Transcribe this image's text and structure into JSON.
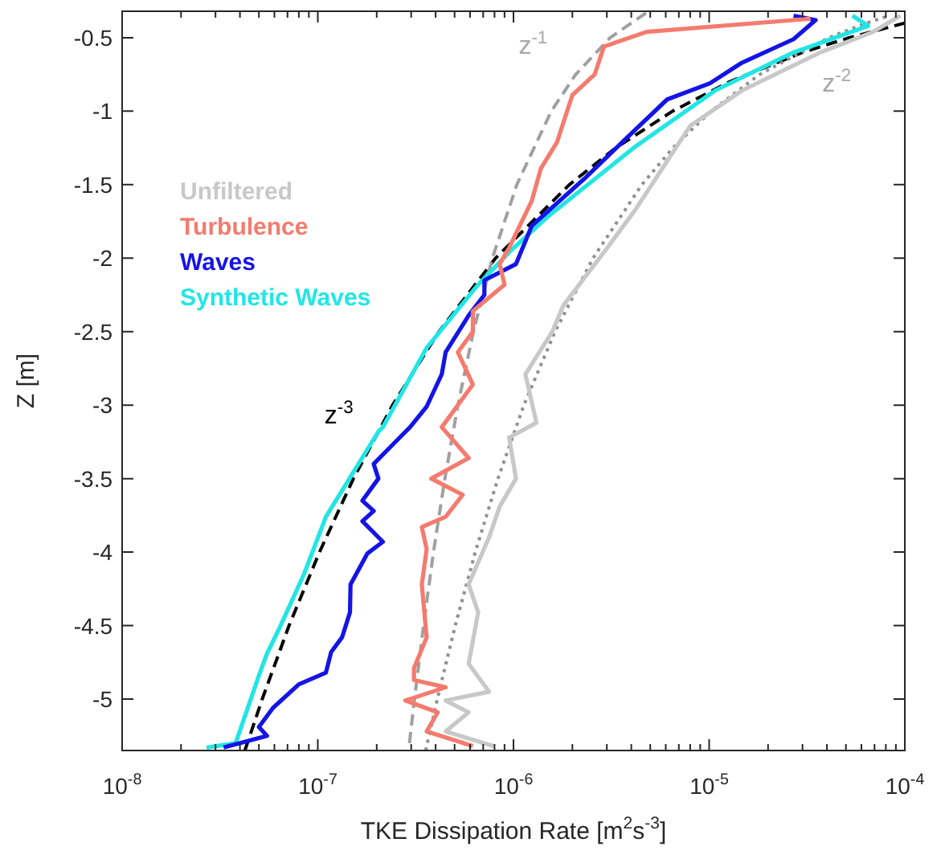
{
  "chart_data": {
    "type": "line",
    "log": "x",
    "xlabel": "TKE Dissipation Rate [m$^{2}$s$^{-3}$]",
    "ylabel": "Z [m]",
    "legend": "left",
    "xlim": [
      1e-08,
      0.0001
    ],
    "ylim": [
      -5.35,
      -0.32
    ],
    "xticks": [
      {
        "value": 1e-08,
        "label": "10$^{-8}$"
      },
      {
        "value": 2e-08,
        "label": null
      },
      {
        "value": 3e-08,
        "label": null
      },
      {
        "value": 4e-08,
        "label": null
      },
      {
        "value": 5e-08,
        "label": null
      },
      {
        "value": 6e-08,
        "label": null
      },
      {
        "value": 7e-08,
        "label": null
      },
      {
        "value": 8e-08,
        "label": null
      },
      {
        "value": 9e-08,
        "label": null
      },
      {
        "value": 1e-07,
        "label": "10$^{-7}$"
      },
      {
        "value": 2e-07,
        "label": null
      },
      {
        "value": 3e-07,
        "label": null
      },
      {
        "value": 4e-07,
        "label": null
      },
      {
        "value": 5e-07,
        "label": null
      },
      {
        "value": 6e-07,
        "label": null
      },
      {
        "value": 7e-07,
        "label": null
      },
      {
        "value": 8e-07,
        "label": null
      },
      {
        "value": 9e-07,
        "label": null
      },
      {
        "value": 1e-06,
        "label": "10$^{-6}$"
      },
      {
        "value": 2e-06,
        "label": null
      },
      {
        "value": 3e-06,
        "label": null
      },
      {
        "value": 4e-06,
        "label": null
      },
      {
        "value": 5e-06,
        "label": null
      },
      {
        "value": 6e-06,
        "label": null
      },
      {
        "value": 7e-06,
        "label": null
      },
      {
        "value": 8e-06,
        "label": null
      },
      {
        "value": 9e-06,
        "label": null
      },
      {
        "value": 1e-05,
        "label": "10$^{-5}$"
      },
      {
        "value": 2e-05,
        "label": null
      },
      {
        "value": 3e-05,
        "label": null
      },
      {
        "value": 4e-05,
        "label": null
      },
      {
        "value": 5e-05,
        "label": null
      },
      {
        "value": 6e-05,
        "label": null
      },
      {
        "value": 7e-05,
        "label": null
      },
      {
        "value": 8e-05,
        "label": null
      },
      {
        "value": 9e-05,
        "label": null
      },
      {
        "value": 0.0001,
        "label": "10$^{-4}$"
      }
    ],
    "yticks": [
      -5,
      -4.5,
      -4,
      -3.5,
      -3,
      -2.5,
      -2,
      -1.5,
      -1,
      -0.5
    ],
    "annotations": [
      "z$^{-1}$",
      "z$^{-2}$",
      "z$^{-3}$"
    ],
    "series": [
      {
        "name": "Unfiltered",
        "color": "#c8c8c8",
        "x": [
          7.9e-07,
          4.5e-07,
          5.9e-07,
          4.5e-07,
          7.5e-07,
          5.9e-07,
          6.6e-07,
          5.9e-07,
          7.5e-07,
          8.5e-07,
          1.03e-06,
          9.5e-07,
          1.31e-06,
          1.15e-06,
          1.58e-06,
          1.8e-06,
          2.9e-06,
          4.2e-06,
          8e-06,
          1.47e-05,
          3.7e-05,
          6.9e-05,
          9.5e-05
        ],
        "values": [
          -5.32,
          -5.22,
          -5.09,
          -5.01,
          -4.95,
          -4.76,
          -4.41,
          -4.22,
          -3.9,
          -3.69,
          -3.5,
          -3.22,
          -3.12,
          -2.79,
          -2.5,
          -2.32,
          -1.96,
          -1.67,
          -1.1,
          -0.86,
          -0.6,
          -0.46,
          -0.35
        ]
      },
      {
        "name": "Turbulence",
        "color": "#f47b6e",
        "x": [
          6.2e-07,
          3.6e-07,
          4.1e-07,
          2.8e-07,
          4.5e-07,
          3.1e-07,
          3.1e-07,
          3.6e-07,
          3.4e-07,
          3.6e-07,
          3.4e-07,
          4.5e-07,
          5.5e-07,
          3.8e-07,
          5.9e-07,
          4.3e-07,
          6.2e-07,
          5.2e-07,
          6.2e-07,
          6.2e-07,
          9e-07,
          8.5e-07,
          9.5e-07,
          1.24e-06,
          1.38e-06,
          1.67e-06,
          2e-06,
          2.6e-06,
          2.9e-06,
          4.8e-06,
          2.7e-05,
          3.3e-05
        ],
        "values": [
          -5.32,
          -5.22,
          -5.09,
          -5.01,
          -4.92,
          -4.87,
          -4.79,
          -4.58,
          -4.22,
          -3.98,
          -3.83,
          -3.76,
          -3.61,
          -3.5,
          -3.36,
          -3.15,
          -2.86,
          -2.64,
          -2.5,
          -2.36,
          -2.18,
          -2.04,
          -1.93,
          -1.61,
          -1.39,
          -1.21,
          -0.89,
          -0.75,
          -0.56,
          -0.46,
          -0.38,
          -0.37
        ]
      },
      {
        "name": "Waves",
        "color": "#1414e6",
        "x": [
          3.3e-08,
          5.5e-08,
          5e-08,
          5.9e-08,
          8e-08,
          1.1e-07,
          1.17e-07,
          1.33e-07,
          1.46e-07,
          1.47e-07,
          1.79e-07,
          2.15e-07,
          1.69e-07,
          1.93e-07,
          1.69e-07,
          2.04e-07,
          1.93e-07,
          2.45e-07,
          2.96e-07,
          3.6e-07,
          4.3e-07,
          4.5e-07,
          5.9e-07,
          7.1e-07,
          7.1e-07,
          1.03e-06,
          1.24e-06,
          2.3e-06,
          3.8e-06,
          6.1e-06,
          1.01e-05,
          1.47e-05,
          2.7e-05,
          3.5e-05,
          2.7e-05
        ],
        "values": [
          -5.33,
          -5.25,
          -5.19,
          -5.06,
          -4.9,
          -4.82,
          -4.68,
          -4.58,
          -4.41,
          -4.22,
          -4.01,
          -3.93,
          -3.79,
          -3.72,
          -3.65,
          -3.5,
          -3.4,
          -3.26,
          -3.15,
          -3.01,
          -2.79,
          -2.64,
          -2.39,
          -2.25,
          -2.15,
          -2.04,
          -1.78,
          -1.46,
          -1.18,
          -0.92,
          -0.81,
          -0.67,
          -0.51,
          -0.38,
          -0.35
        ]
      },
      {
        "name": "Synthetic Waves",
        "color": "#22e5e5",
        "x": [
          2.7e-08,
          3.8e-08,
          4.6e-08,
          5e-08,
          5.5e-08,
          6.3e-08,
          8.5e-08,
          1.1e-07,
          2.04e-07,
          2.15e-07,
          3.6e-07,
          6.6e-07,
          9.5e-07,
          1.49e-06,
          4.2e-06,
          1.07e-05,
          2.7e-05,
          6.5e-05,
          5.4e-05
        ],
        "values": [
          -5.33,
          -5.3,
          -4.98,
          -4.84,
          -4.69,
          -4.53,
          -4.15,
          -3.76,
          -3.18,
          -3.15,
          -2.61,
          -2.18,
          -1.96,
          -1.72,
          -1.24,
          -0.86,
          -0.6,
          -0.42,
          -0.35
        ]
      },
      {
        "color": "#a0a0a0",
        "line_style": "dashed",
        "x": [
          2.94e-07,
          3.12e-07,
          3.47e-07,
          3.9e-07,
          4.46e-07,
          5.2e-07,
          6.24e-07,
          7.8e-07,
          1.04e-06,
          1.56e-06,
          2.08e-06,
          3.12e-06,
          4.9e-06
        ],
        "values": [
          -5.3,
          -5,
          -4.5,
          -4,
          -3.5,
          -3,
          -2.5,
          -2,
          -1.5,
          -1,
          -0.75,
          -0.5,
          -0.32
        ]
      },
      {
        "color": "#909090",
        "line_style": "dotted",
        "x": [
          3.56e-07,
          4.08e-07,
          5.04e-07,
          6.38e-07,
          8.33e-07,
          1.13e-06,
          1.63e-06,
          2.55e-06,
          4.53e-06,
          6.53e-06,
          1.02e-05,
          1.81e-05,
          4.08e-05,
          6.38e-05,
          8.33e-05
        ],
        "values": [
          -5.35,
          -5,
          -4.5,
          -4,
          -3.5,
          -3,
          -2.5,
          -2,
          -1.5,
          -1.25,
          -1,
          -0.75,
          -0.5,
          -0.4,
          -0.35
        ]
      },
      {
        "color": "#000000",
        "line_style": "dashed",
        "x": [
          4.24e-08,
          5.2e-08,
          7.13e-08,
          1.02e-07,
          1.52e-07,
          2.41e-07,
          4.16e-07,
          8.1e-07,
          1.93e-06,
          3.33e-06,
          6.5e-06,
          1.27e-05,
          3e-05,
          5.2e-05,
          0.0001
        ],
        "values": [
          -5.35,
          -5,
          -4.5,
          -4,
          -3.5,
          -3,
          -2.5,
          -2,
          -1.5,
          -1.25,
          -1,
          -0.8,
          -0.6,
          -0.5,
          -0.4
        ]
      }
    ]
  }
}
